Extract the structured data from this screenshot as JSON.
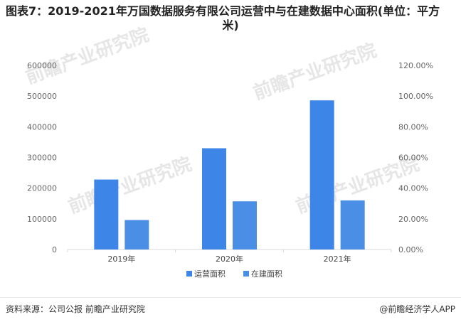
{
  "title_line1": "图表7：2019-2021年万国数据服务有限公司运营中与在建数据中心面积(单位：平方",
  "title_line2": "米)",
  "source": "资料来源：公司公报 前瞻产业研究院",
  "credit": "@前瞻经济学人APP",
  "watermark": "前瞻产业研究院",
  "colors": {
    "series1": "#3d86e8",
    "series2": "#4b8ee6",
    "axis": "#d9d9d9"
  },
  "chart_data": {
    "type": "bar",
    "categories": [
      "2019年",
      "2020年",
      "2021年"
    ],
    "series": [
      {
        "name": "运营面积",
        "values": [
          228000,
          330000,
          486000
        ]
      },
      {
        "name": "在建面积",
        "values": [
          96000,
          157000,
          160000
        ]
      }
    ],
    "ylim": [
      0,
      600000
    ],
    "y_ticks": [
      "0",
      "100000",
      "200000",
      "300000",
      "400000",
      "500000",
      "600000"
    ],
    "y2lim": [
      0,
      120
    ],
    "y2_ticks": [
      "0.00%",
      "20.00%",
      "40.00%",
      "60.00%",
      "80.00%",
      "100.00%",
      "120.00%"
    ],
    "legend_position": "bottom",
    "grid": false
  }
}
